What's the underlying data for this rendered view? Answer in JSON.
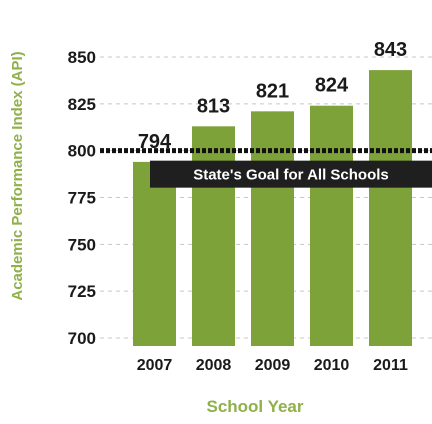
{
  "chart_data": {
    "type": "bar",
    "categories": [
      "2007",
      "2008",
      "2009",
      "2010",
      "2011"
    ],
    "values": [
      794,
      813,
      821,
      824,
      843
    ],
    "data_labels": [
      "794",
      "813",
      "821",
      "824",
      "843"
    ],
    "xlabel": "School Year",
    "ylabel": "Academic Performance Index (API)",
    "ylim": [
      700,
      850
    ],
    "yticks": [
      850,
      825,
      800,
      775,
      750,
      725,
      700
    ],
    "grid": true,
    "bar_color": "#7ea23a",
    "axis_label_color": "#8fb04a",
    "goal": {
      "value": 800,
      "label": "State's Goal for All Schools",
      "label_bg": "#1f1f1f",
      "label_color": "#ffffff"
    }
  }
}
